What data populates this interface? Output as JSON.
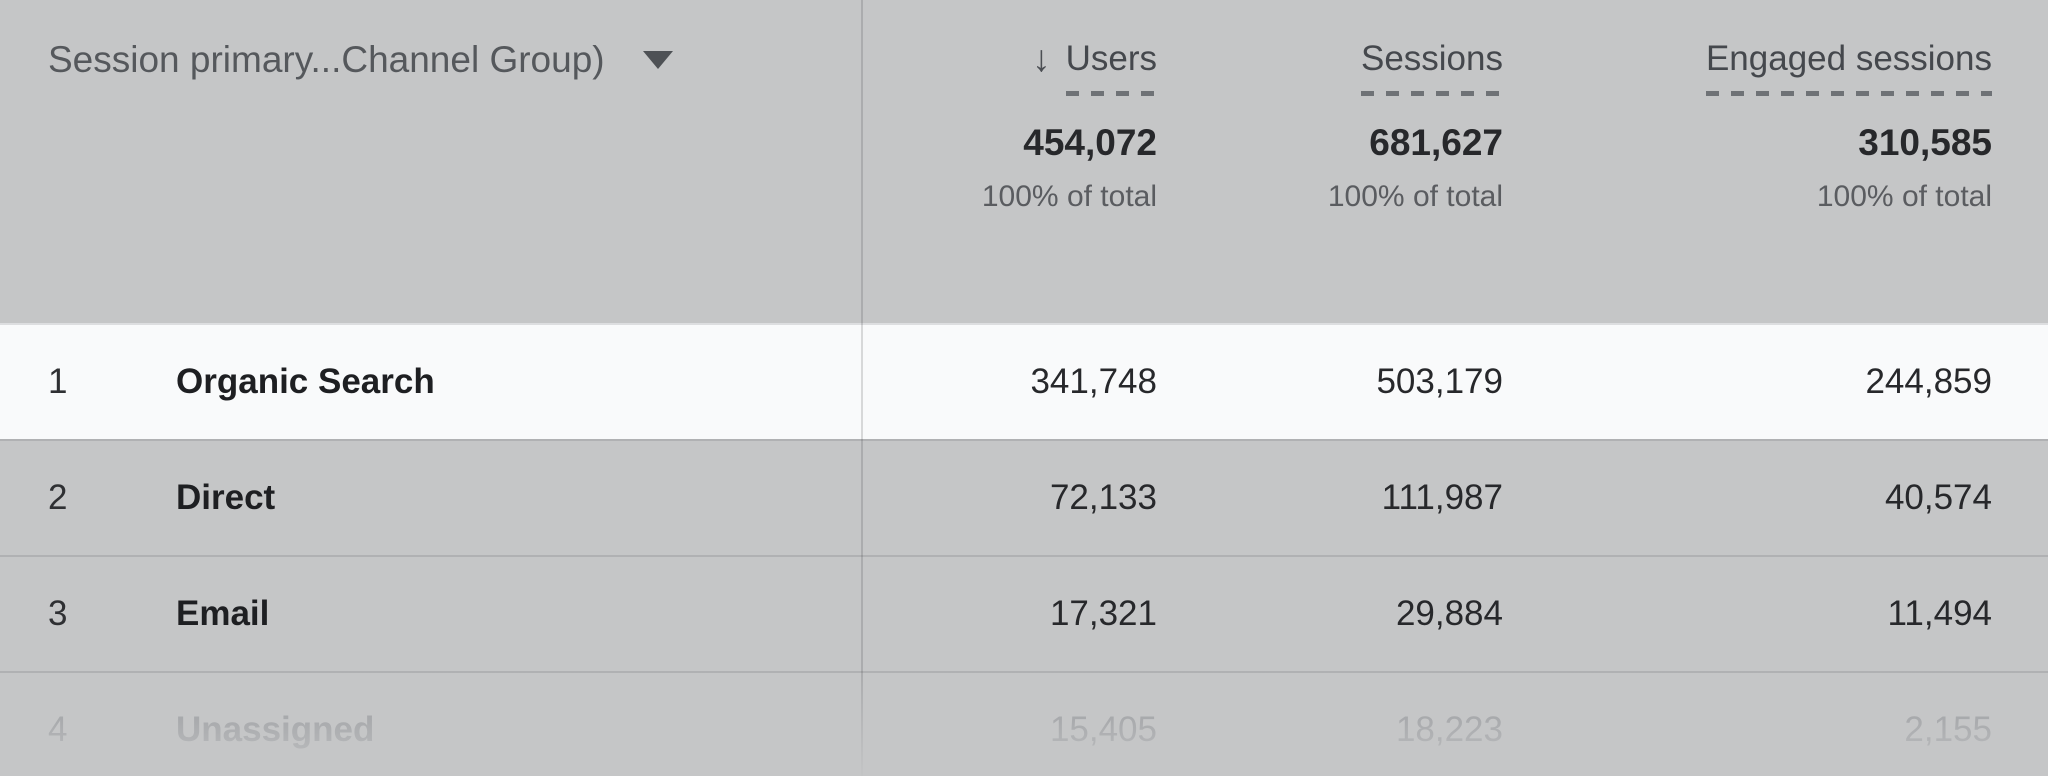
{
  "table": {
    "dimension_header": {
      "label": "Session primary...Channel Group)"
    },
    "sort_icon": "↓",
    "columns": [
      {
        "label": "Users",
        "sorted": true,
        "total": "454,072",
        "total_sub": "100% of total"
      },
      {
        "label": "Sessions",
        "sorted": false,
        "total": "681,627",
        "total_sub": "100% of total"
      },
      {
        "label": "Engaged sessions",
        "sorted": false,
        "total": "310,585",
        "total_sub": "100% of total"
      }
    ],
    "rows": [
      {
        "index": "1",
        "channel": "Organic Search",
        "users": "341,748",
        "sessions": "503,179",
        "engaged_sessions": "244,859",
        "highlighted": true,
        "faded": false
      },
      {
        "index": "2",
        "channel": "Direct",
        "users": "72,133",
        "sessions": "111,987",
        "engaged_sessions": "40,574",
        "highlighted": false,
        "faded": false
      },
      {
        "index": "3",
        "channel": "Email",
        "users": "17,321",
        "sessions": "29,884",
        "engaged_sessions": "11,494",
        "highlighted": false,
        "faded": false
      },
      {
        "index": "4",
        "channel": "Unassigned",
        "users": "15,405",
        "sessions": "18,223",
        "engaged_sessions": "2,155",
        "highlighted": false,
        "faded": true
      }
    ],
    "colors": {
      "background": "#c5c6c7",
      "highlight_row": "#f9fafb",
      "header_text": "#45484d",
      "value_text": "#27282b"
    }
  },
  "chart_data": {
    "type": "table",
    "title": "Session primary...Channel Group)",
    "columns": [
      "Session primary...Channel Group)",
      "Users",
      "Sessions",
      "Engaged sessions"
    ],
    "sorted_by": "Users",
    "sort_direction": "descending",
    "totals": {
      "users": 454072,
      "sessions": 681627,
      "engaged_sessions": 310585,
      "share_label": "100% of total"
    },
    "rows": [
      {
        "rank": 1,
        "channel": "Organic Search",
        "users": 341748,
        "sessions": 503179,
        "engaged_sessions": 244859
      },
      {
        "rank": 2,
        "channel": "Direct",
        "users": 72133,
        "sessions": 111987,
        "engaged_sessions": 40574
      },
      {
        "rank": 3,
        "channel": "Email",
        "users": 17321,
        "sessions": 29884,
        "engaged_sessions": 11494
      },
      {
        "rank": 4,
        "channel": "Unassigned",
        "users": 15405,
        "sessions": 18223,
        "engaged_sessions": 2155
      }
    ]
  }
}
